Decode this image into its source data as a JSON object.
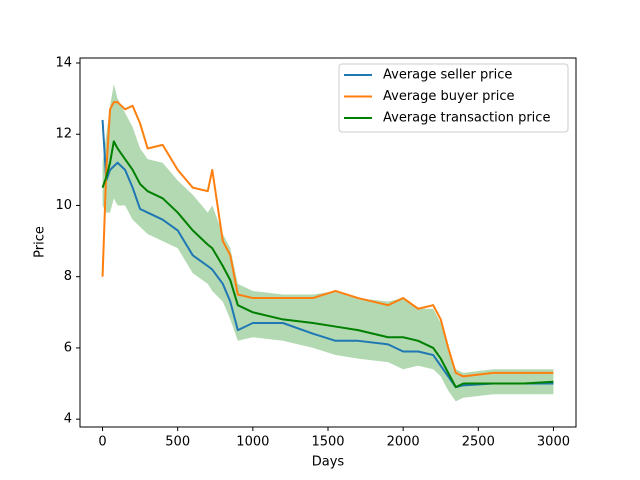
{
  "chart_data": {
    "type": "line",
    "xlabel": "Days",
    "ylabel": "Price",
    "x": [
      0,
      25,
      50,
      75,
      100,
      150,
      200,
      250,
      300,
      400,
      500,
      600,
      700,
      730,
      800,
      850,
      900,
      1000,
      1200,
      1400,
      1550,
      1700,
      1900,
      2000,
      2100,
      2200,
      2250,
      2300,
      2350,
      2400,
      2600,
      2800,
      3000
    ],
    "series": [
      {
        "name": "Average seller price",
        "color": "#1f77b4",
        "values": [
          12.4,
          10.7,
          11.0,
          11.1,
          11.2,
          11.0,
          10.5,
          9.9,
          9.8,
          9.6,
          9.3,
          8.6,
          8.3,
          8.2,
          7.8,
          7.3,
          6.5,
          6.7,
          6.7,
          6.4,
          6.2,
          6.2,
          6.1,
          5.9,
          5.9,
          5.8,
          5.5,
          5.2,
          4.9,
          4.95,
          5.0,
          5.0,
          5.0
        ]
      },
      {
        "name": "Average buyer price",
        "color": "#ff7f0e",
        "values": [
          8.0,
          11.0,
          12.7,
          12.9,
          12.9,
          12.7,
          12.8,
          12.3,
          11.6,
          11.7,
          11.0,
          10.5,
          10.4,
          11.0,
          9.0,
          8.6,
          7.5,
          7.4,
          7.4,
          7.4,
          7.6,
          7.4,
          7.2,
          7.4,
          7.1,
          7.2,
          6.8,
          6.0,
          5.3,
          5.2,
          5.3,
          5.3,
          5.3
        ]
      },
      {
        "name": "Average transaction price",
        "color": "#008000",
        "values": [
          10.5,
          10.8,
          11.2,
          11.8,
          11.6,
          11.3,
          11.0,
          10.6,
          10.4,
          10.2,
          9.8,
          9.3,
          8.9,
          8.8,
          8.3,
          7.9,
          7.2,
          7.0,
          6.8,
          6.7,
          6.6,
          6.5,
          6.3,
          6.3,
          6.2,
          6.0,
          5.7,
          5.3,
          4.9,
          5.0,
          5.0,
          5.0,
          5.05
        ]
      }
    ],
    "band": {
      "color": "#008000",
      "upper": [
        11.2,
        12.0,
        12.8,
        13.4,
        13.0,
        12.6,
        12.2,
        11.6,
        11.3,
        11.2,
        10.7,
        10.3,
        9.8,
        10.0,
        9.2,
        8.8,
        7.8,
        7.6,
        7.5,
        7.5,
        7.6,
        7.4,
        7.3,
        7.4,
        7.1,
        7.1,
        6.7,
        6.0,
        5.4,
        5.3,
        5.4,
        5.4,
        5.4
      ],
      "lower": [
        10.0,
        9.8,
        9.8,
        10.2,
        10.0,
        10.0,
        9.6,
        9.4,
        9.2,
        9.0,
        8.8,
        8.1,
        7.8,
        7.6,
        7.3,
        6.8,
        6.2,
        6.3,
        6.2,
        6.0,
        5.8,
        5.7,
        5.6,
        5.4,
        5.5,
        5.4,
        5.2,
        4.8,
        4.5,
        4.6,
        4.7,
        4.7,
        4.7
      ]
    },
    "xlim": [
      -150,
      3150
    ],
    "ylim": [
      3.78,
      14.14
    ],
    "xticks": [
      0,
      500,
      1000,
      1500,
      2000,
      2500,
      3000
    ],
    "yticks": [
      4,
      6,
      8,
      10,
      12,
      14
    ],
    "grid": false,
    "legend": "upper right"
  }
}
